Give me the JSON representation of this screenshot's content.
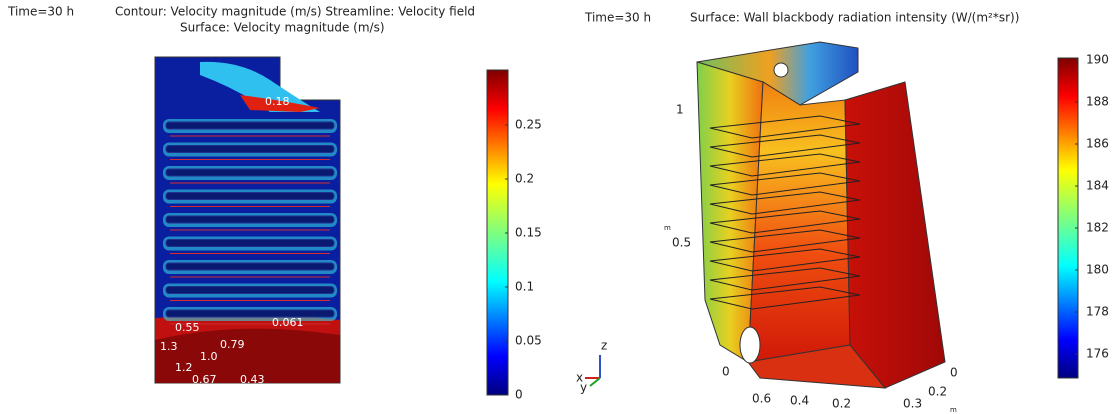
{
  "left": {
    "time": "Time=30 h",
    "title_line1": "Contour: Velocity magnitude (m/s)  Streamline: Velocity field",
    "title_line2": "Surface: Velocity magnitude (m/s)",
    "colorbar_ticks": [
      "0.25",
      "0.2",
      "0.15",
      "0.1",
      "0.05",
      "0"
    ],
    "contour_labels": [
      "0.18",
      "0.55",
      "0.061",
      "0.79",
      "1.3",
      "1.0",
      "1.2",
      "0.67",
      "0.43"
    ]
  },
  "axes_triad": [
    "z",
    "x",
    "y"
  ],
  "right": {
    "time": "Time=30 h",
    "title": "Surface: Wall blackbody radiation intensity (W/(m²*sr))",
    "colorbar_ticks": [
      "190",
      "188",
      "186",
      "184",
      "182",
      "180",
      "178",
      "176"
    ],
    "z_ticks": [
      "1",
      "0.5",
      "0"
    ],
    "x_ticks": [
      "0.6",
      "0.4",
      "0.2"
    ],
    "y_ticks": [
      "0",
      "0.2",
      "0.3"
    ],
    "unit": "m"
  }
}
